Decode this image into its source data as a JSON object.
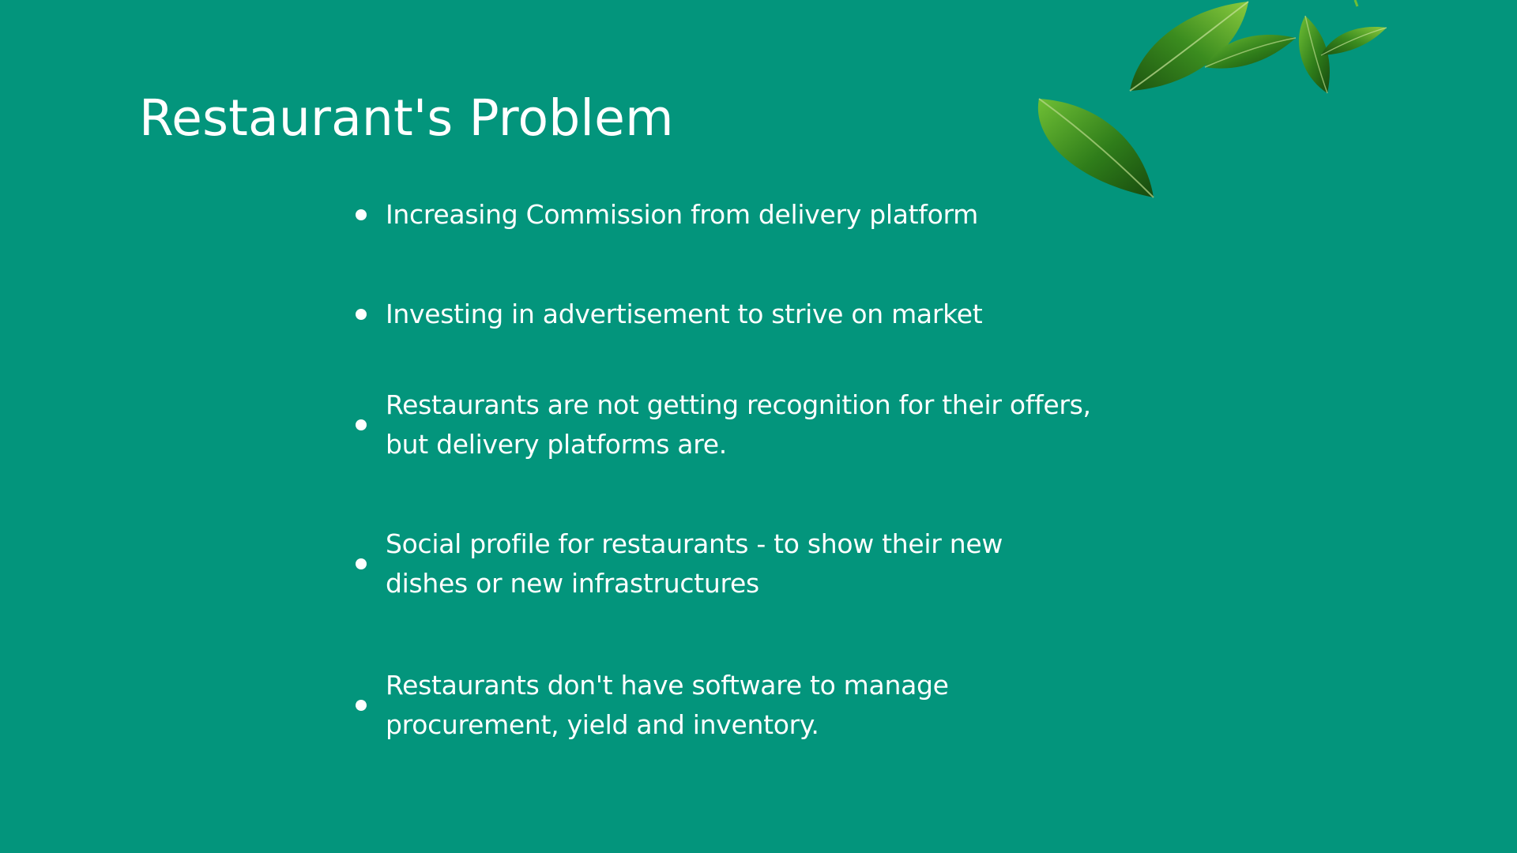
{
  "slide": {
    "title": "Restaurant's Problem",
    "bullets": [
      "Increasing Commission from delivery platform",
      "Investing in advertisement to strive on market",
      "Restaurants are not getting recognition for their offers,\nbut delivery platforms are.",
      "Social profile for restaurants - to show their new\ndishes or new infrastructures",
      "Restaurants don't have software to manage\nprocurement, yield and inventory."
    ]
  },
  "colors": {
    "background": "#03957c",
    "text": "#ffffff",
    "leaf_dark": "#1f5e14",
    "leaf_light": "#5fae2c"
  },
  "decor": {
    "icon": "leaf-icon"
  }
}
